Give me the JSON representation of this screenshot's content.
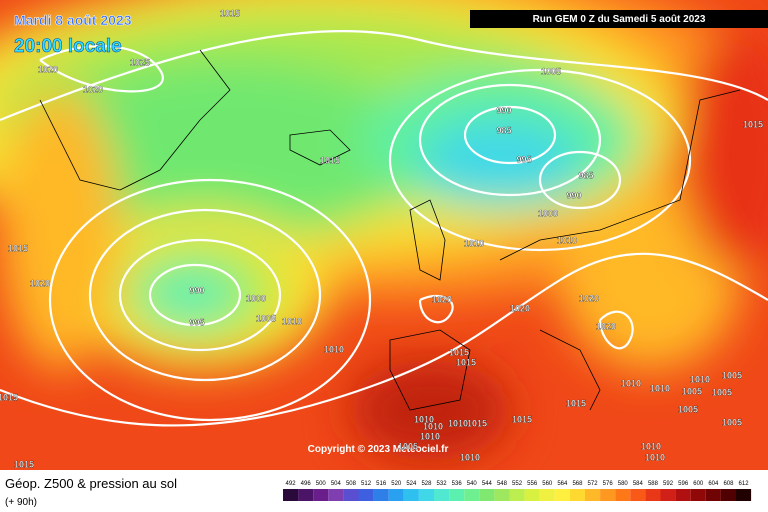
{
  "header": {
    "date": "Mardi 8 août 2023",
    "time": "20:00 locale",
    "run": "Run GEM 0 Z du Samedi 5 août 2023"
  },
  "copyright": "Copyright © 2023 Meteociel.fr",
  "footer": {
    "title": "Géop. Z500 & pression au sol",
    "lead": "(+ 90h)"
  },
  "isobar_labels": [
    1015,
    1025,
    1020,
    1020,
    1005,
    990,
    985,
    995,
    985,
    990,
    1000,
    1010,
    1015,
    1015,
    1010,
    1015,
    1020,
    990,
    1000,
    995,
    1005,
    1010,
    1020,
    1020,
    1020,
    1020,
    1010,
    1015,
    1015,
    1010,
    1010,
    1010,
    1005,
    1005,
    1005,
    1005,
    1015,
    1015,
    1015,
    1010,
    1010,
    1010,
    1015,
    1010,
    1005,
    1010,
    1010,
    1005,
    1010,
    1015
  ],
  "scale": {
    "values": [
      492,
      496,
      500,
      504,
      508,
      512,
      516,
      520,
      524,
      528,
      532,
      536,
      540,
      544,
      548,
      552,
      556,
      560,
      564,
      568,
      572,
      576,
      580,
      584,
      588,
      592,
      596,
      600,
      604,
      608,
      612
    ],
    "colors": [
      "#2a0a3a",
      "#4b1466",
      "#6a1e8c",
      "#7f3fb0",
      "#5a4fd0",
      "#3d5fe0",
      "#2f7fe8",
      "#2aa0f0",
      "#30c0f0",
      "#40d8e8",
      "#50e8d0",
      "#5cf0b0",
      "#6ef090",
      "#80e870",
      "#9ee860",
      "#bcee50",
      "#d8f040",
      "#f0f040",
      "#fff040",
      "#ffd830",
      "#ffb828",
      "#ff9820",
      "#ff7818",
      "#f85818",
      "#e83818",
      "#d02018",
      "#b01010",
      "#900808",
      "#700404",
      "#500000",
      "#200000"
    ]
  }
}
